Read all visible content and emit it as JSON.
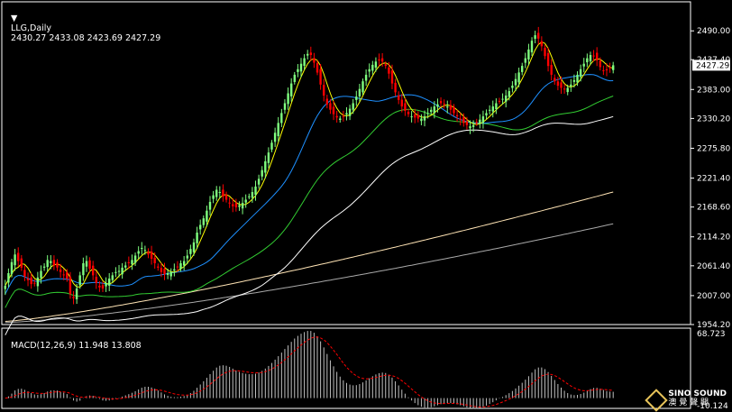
{
  "header": {
    "symbol_line": "LLG,Daily",
    "ohlc": "2430.27 2433.08 2423.69 2427.29",
    "macd_label": "MACD(12,26,9) 11.948 13.808"
  },
  "watermark": {
    "brand": "SINO SOUND",
    "sub": "澳 覺 聲 聞"
  },
  "colors": {
    "background": "#000000",
    "frame": "#ffffff",
    "bull": "#7fff7f",
    "bear": "#ff0000",
    "ma_yellow": "#ffff00",
    "ma_blue": "#1e90ff",
    "ma_green": "#32cd32",
    "ma_white": "#ffffff",
    "ma_khaki": "#ffe4b5",
    "ma_gray": "#a9a9a9",
    "macd_hist": "#c0c0c0",
    "macd_signal": "#ff0000"
  },
  "chart_data": [
    {
      "type": "candlestick",
      "title": "LLG,Daily",
      "ylim": [
        1954.2,
        2543.0
      ],
      "y_ticks": [
        "2490.00",
        "2437.40",
        "2383.00",
        "2330.20",
        "2275.80",
        "2221.40",
        "2168.60",
        "2114.20",
        "2061.40",
        "2007.00",
        "1954.20"
      ],
      "last_price": "2427.29",
      "closes": [
        2025,
        2048,
        2068,
        2082,
        2070,
        2058,
        2042,
        2035,
        2028,
        2030,
        2040,
        2052,
        2060,
        2072,
        2070,
        2062,
        2058,
        2050,
        2045,
        2038,
        2010,
        2002,
        2020,
        2044,
        2066,
        2070,
        2056,
        2044,
        2030,
        2022,
        2020,
        2030,
        2038,
        2044,
        2050,
        2052,
        2058,
        2062,
        2066,
        2072,
        2080,
        2088,
        2094,
        2090,
        2082,
        2074,
        2066,
        2058,
        2050,
        2046,
        2048,
        2050,
        2055,
        2060,
        2066,
        2070,
        2080,
        2092,
        2104,
        2122,
        2136,
        2148,
        2162,
        2178,
        2190,
        2200,
        2196,
        2188,
        2182,
        2176,
        2170,
        2168,
        2172,
        2176,
        2182,
        2188,
        2196,
        2206,
        2220,
        2236,
        2252,
        2268,
        2286,
        2304,
        2322,
        2340,
        2358,
        2376,
        2394,
        2410,
        2420,
        2430,
        2440,
        2448,
        2446,
        2432,
        2414,
        2392,
        2372,
        2356,
        2346,
        2338,
        2332,
        2330,
        2334,
        2340,
        2348,
        2358,
        2370,
        2384,
        2398,
        2410,
        2420,
        2428,
        2434,
        2436,
        2434,
        2426,
        2412,
        2394,
        2378,
        2364,
        2352,
        2344,
        2338,
        2334,
        2332,
        2330,
        2330,
        2334,
        2340,
        2346,
        2352,
        2356,
        2358,
        2356,
        2352,
        2346,
        2340,
        2334,
        2328,
        2322,
        2318,
        2316,
        2318,
        2322,
        2328,
        2334,
        2340,
        2346,
        2352,
        2358,
        2362,
        2366,
        2372,
        2380,
        2390,
        2402,
        2414,
        2426,
        2440,
        2456,
        2472,
        2482,
        2476,
        2462,
        2444,
        2426,
        2410,
        2398,
        2390,
        2386,
        2384,
        2386,
        2392,
        2400,
        2410,
        2420,
        2430,
        2440,
        2446,
        2444,
        2436,
        2424,
        2418,
        2418,
        2422,
        2427.29
      ]
    },
    {
      "type": "bar",
      "title": "MACD(12,26,9)",
      "macd": 11.948,
      "signal": 13.808,
      "ylim": [
        -10.124,
        68.723
      ],
      "y_ticks": [
        "68.723",
        "-10.124"
      ]
    }
  ]
}
